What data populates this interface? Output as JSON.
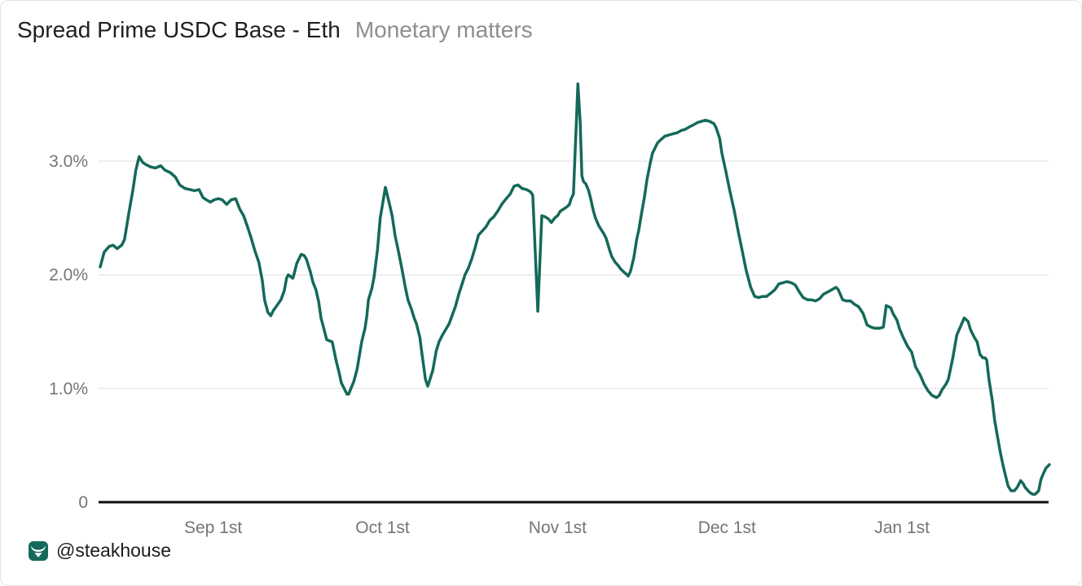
{
  "header": {
    "title": "Spread Prime USDC Base - Eth",
    "subtitle": "Monetary matters"
  },
  "footer": {
    "watermark": "@steakhouse",
    "logo_icon": "steakhouse-bull-icon"
  },
  "colors": {
    "line": "#14695A",
    "grid": "#e9e9e9",
    "axis": "#0d0d0d",
    "title": "#1f1f1f",
    "subtitle": "#8e8e8e",
    "tick_label": "#757575",
    "logo_bg": "#14695A",
    "logo_glyph": "#ffffff",
    "background": "#ffffff"
  },
  "chart_data": {
    "type": "line",
    "title": "Spread Prime USDC Base - Eth",
    "subtitle": "Monetary matters",
    "x_unit": "days (0 = chart start; Sep 1st = day 20, daily series ending ~4 weeks after Jan 1st)",
    "y_unit": "percent",
    "x_range": [
      0,
      168.1
    ],
    "y_range": [
      0,
      3.7
    ],
    "grid": "horizontal gridlines at 1.0%, 2.0%, 3.0%; black baseline at 0",
    "legend": "none",
    "x_ticks": [
      {
        "day": 20,
        "label": "Sep 1st"
      },
      {
        "day": 50,
        "label": "Oct 1st"
      },
      {
        "day": 81,
        "label": "Nov 1st"
      },
      {
        "day": 111,
        "label": "Dec 1st"
      },
      {
        "day": 142,
        "label": "Jan 1st"
      }
    ],
    "y_ticks": [
      {
        "value": 0,
        "label": "0"
      },
      {
        "value": 1,
        "label": "1.0%"
      },
      {
        "value": 2,
        "label": "2.0%"
      },
      {
        "value": 3,
        "label": "3.0%"
      }
    ],
    "series": [
      {
        "name": "Spread Prime USDC Base - Eth",
        "color": "#14695A",
        "points": [
          [
            0,
            2.07
          ],
          [
            0.7,
            2.2
          ],
          [
            1.6,
            2.25
          ],
          [
            2.3,
            2.26
          ],
          [
            3.0,
            2.23
          ],
          [
            3.8,
            2.26
          ],
          [
            4.3,
            2.31
          ],
          [
            5.1,
            2.55
          ],
          [
            5.8,
            2.75
          ],
          [
            6.3,
            2.92
          ],
          [
            6.9,
            3.04
          ],
          [
            7.5,
            2.99
          ],
          [
            8.1,
            2.97
          ],
          [
            8.9,
            2.95
          ],
          [
            9.8,
            2.94
          ],
          [
            10.7,
            2.96
          ],
          [
            11.5,
            2.92
          ],
          [
            12.4,
            2.9
          ],
          [
            13.3,
            2.86
          ],
          [
            14.1,
            2.79
          ],
          [
            15.0,
            2.76
          ],
          [
            15.9,
            2.75
          ],
          [
            16.7,
            2.74
          ],
          [
            17.5,
            2.75
          ],
          [
            18.2,
            2.68
          ],
          [
            18.8,
            2.66
          ],
          [
            19.5,
            2.64
          ],
          [
            20.2,
            2.66
          ],
          [
            20.9,
            2.67
          ],
          [
            21.6,
            2.66
          ],
          [
            22.4,
            2.62
          ],
          [
            23.2,
            2.66
          ],
          [
            24.0,
            2.67
          ],
          [
            24.7,
            2.58
          ],
          [
            25.4,
            2.52
          ],
          [
            26.1,
            2.42
          ],
          [
            26.7,
            2.33
          ],
          [
            27.4,
            2.21
          ],
          [
            28.1,
            2.11
          ],
          [
            28.7,
            1.95
          ],
          [
            29.1,
            1.78
          ],
          [
            29.7,
            1.67
          ],
          [
            30.2,
            1.64
          ],
          [
            30.7,
            1.69
          ],
          [
            31.3,
            1.73
          ],
          [
            32.0,
            1.78
          ],
          [
            32.6,
            1.86
          ],
          [
            33.0,
            1.97
          ],
          [
            33.3,
            2.0
          ],
          [
            33.6,
            1.99
          ],
          [
            34.1,
            1.97
          ],
          [
            34.3,
            2.0
          ],
          [
            34.8,
            2.1
          ],
          [
            35.4,
            2.16
          ],
          [
            35.6,
            2.18
          ],
          [
            36.1,
            2.17
          ],
          [
            36.5,
            2.14
          ],
          [
            37.2,
            2.03
          ],
          [
            37.7,
            1.93
          ],
          [
            38.2,
            1.87
          ],
          [
            38.7,
            1.76
          ],
          [
            39.1,
            1.62
          ],
          [
            39.7,
            1.51
          ],
          [
            40.1,
            1.43
          ],
          [
            40.6,
            1.42
          ],
          [
            41.1,
            1.41
          ],
          [
            41.3,
            1.36
          ],
          [
            41.8,
            1.24
          ],
          [
            42.3,
            1.14
          ],
          [
            42.7,
            1.05
          ],
          [
            43.3,
            0.99
          ],
          [
            43.7,
            0.95
          ],
          [
            44.0,
            0.95
          ],
          [
            44.4,
            1.0
          ],
          [
            44.9,
            1.06
          ],
          [
            45.5,
            1.17
          ],
          [
            45.9,
            1.29
          ],
          [
            46.3,
            1.41
          ],
          [
            46.9,
            1.53
          ],
          [
            47.2,
            1.63
          ],
          [
            47.5,
            1.78
          ],
          [
            48.1,
            1.88
          ],
          [
            48.5,
            1.98
          ],
          [
            49.1,
            2.22
          ],
          [
            49.6,
            2.5
          ],
          [
            50.2,
            2.68
          ],
          [
            50.5,
            2.77
          ],
          [
            51.1,
            2.65
          ],
          [
            51.7,
            2.52
          ],
          [
            52.2,
            2.35
          ],
          [
            52.8,
            2.21
          ],
          [
            53.4,
            2.06
          ],
          [
            54.0,
            1.9
          ],
          [
            54.5,
            1.78
          ],
          [
            55.1,
            1.7
          ],
          [
            55.6,
            1.62
          ],
          [
            56.0,
            1.57
          ],
          [
            56.6,
            1.45
          ],
          [
            57.0,
            1.3
          ],
          [
            57.6,
            1.08
          ],
          [
            58.0,
            1.02
          ],
          [
            58.4,
            1.08
          ],
          [
            58.9,
            1.16
          ],
          [
            59.5,
            1.33
          ],
          [
            60.0,
            1.41
          ],
          [
            60.6,
            1.47
          ],
          [
            61.2,
            1.52
          ],
          [
            61.8,
            1.57
          ],
          [
            62.3,
            1.64
          ],
          [
            62.9,
            1.72
          ],
          [
            63.5,
            1.83
          ],
          [
            64.1,
            1.92
          ],
          [
            64.6,
            2.0
          ],
          [
            65.2,
            2.06
          ],
          [
            65.8,
            2.14
          ],
          [
            66.4,
            2.24
          ],
          [
            67.0,
            2.35
          ],
          [
            68.3,
            2.42
          ],
          [
            69.0,
            2.48
          ],
          [
            69.7,
            2.51
          ],
          [
            70.4,
            2.56
          ],
          [
            71.1,
            2.62
          ],
          [
            71.9,
            2.67
          ],
          [
            72.6,
            2.71
          ],
          [
            73.3,
            2.78
          ],
          [
            74.0,
            2.79
          ],
          [
            74.7,
            2.76
          ],
          [
            75.5,
            2.75
          ],
          [
            76.2,
            2.73
          ],
          [
            76.6,
            2.7
          ],
          [
            77.5,
            1.68
          ],
          [
            78.2,
            2.52
          ],
          [
            78.8,
            2.51
          ],
          [
            79.4,
            2.49
          ],
          [
            79.9,
            2.46
          ],
          [
            80.5,
            2.5
          ],
          [
            81.0,
            2.52
          ],
          [
            81.5,
            2.56
          ],
          [
            82.1,
            2.58
          ],
          [
            82.7,
            2.6
          ],
          [
            83.1,
            2.62
          ],
          [
            83.4,
            2.67
          ],
          [
            83.8,
            2.71
          ],
          [
            84.6,
            3.68
          ],
          [
            85.0,
            3.34
          ],
          [
            85.3,
            2.87
          ],
          [
            85.6,
            2.82
          ],
          [
            86.0,
            2.8
          ],
          [
            86.5,
            2.74
          ],
          [
            86.9,
            2.66
          ],
          [
            87.3,
            2.57
          ],
          [
            87.7,
            2.5
          ],
          [
            88.3,
            2.43
          ],
          [
            88.7,
            2.4
          ],
          [
            89.2,
            2.36
          ],
          [
            89.6,
            2.32
          ],
          [
            90.2,
            2.22
          ],
          [
            90.6,
            2.16
          ],
          [
            91.2,
            2.11
          ],
          [
            91.6,
            2.09
          ],
          [
            92.2,
            2.05
          ],
          [
            92.6,
            2.03
          ],
          [
            93.1,
            2.01
          ],
          [
            93.5,
            1.99
          ],
          [
            93.9,
            2.03
          ],
          [
            94.5,
            2.15
          ],
          [
            95.0,
            2.31
          ],
          [
            95.4,
            2.4
          ],
          [
            95.8,
            2.52
          ],
          [
            96.4,
            2.69
          ],
          [
            96.8,
            2.83
          ],
          [
            97.4,
            2.98
          ],
          [
            97.8,
            3.07
          ],
          [
            98.3,
            3.12
          ],
          [
            98.7,
            3.16
          ],
          [
            99.3,
            3.19
          ],
          [
            100.0,
            3.22
          ],
          [
            100.7,
            3.23
          ],
          [
            101.4,
            3.24
          ],
          [
            102.2,
            3.25
          ],
          [
            102.9,
            3.27
          ],
          [
            103.6,
            3.28
          ],
          [
            104.3,
            3.3
          ],
          [
            105.1,
            3.32
          ],
          [
            105.8,
            3.34
          ],
          [
            106.5,
            3.35
          ],
          [
            107.2,
            3.36
          ],
          [
            107.9,
            3.35
          ],
          [
            108.7,
            3.33
          ],
          [
            109.1,
            3.29
          ],
          [
            109.7,
            3.2
          ],
          [
            110.1,
            3.07
          ],
          [
            110.8,
            2.91
          ],
          [
            111.5,
            2.74
          ],
          [
            112.3,
            2.56
          ],
          [
            113.0,
            2.38
          ],
          [
            113.7,
            2.21
          ],
          [
            114.4,
            2.04
          ],
          [
            115.2,
            1.89
          ],
          [
            115.9,
            1.81
          ],
          [
            116.6,
            1.8
          ],
          [
            117.3,
            1.81
          ],
          [
            118.0,
            1.81
          ],
          [
            118.8,
            1.84
          ],
          [
            119.5,
            1.87
          ],
          [
            120.2,
            1.92
          ],
          [
            120.9,
            1.93
          ],
          [
            121.6,
            1.94
          ],
          [
            122.4,
            1.93
          ],
          [
            123.1,
            1.91
          ],
          [
            123.8,
            1.85
          ],
          [
            124.5,
            1.8
          ],
          [
            125.3,
            1.78
          ],
          [
            126.0,
            1.78
          ],
          [
            126.7,
            1.77
          ],
          [
            127.4,
            1.79
          ],
          [
            128.1,
            1.83
          ],
          [
            128.9,
            1.85
          ],
          [
            129.6,
            1.87
          ],
          [
            130.3,
            1.89
          ],
          [
            130.7,
            1.87
          ],
          [
            131.5,
            1.78
          ],
          [
            132.2,
            1.77
          ],
          [
            132.9,
            1.77
          ],
          [
            133.6,
            1.74
          ],
          [
            134.3,
            1.72
          ],
          [
            135.1,
            1.66
          ],
          [
            135.8,
            1.56
          ],
          [
            136.5,
            1.54
          ],
          [
            137.2,
            1.53
          ],
          [
            138.0,
            1.53
          ],
          [
            138.7,
            1.54
          ],
          [
            139.2,
            1.73
          ],
          [
            140.0,
            1.71
          ],
          [
            140.4,
            1.66
          ],
          [
            141.1,
            1.6
          ],
          [
            141.6,
            1.52
          ],
          [
            142.3,
            1.44
          ],
          [
            143.0,
            1.37
          ],
          [
            143.7,
            1.32
          ],
          [
            144.4,
            1.19
          ],
          [
            145.2,
            1.12
          ],
          [
            145.9,
            1.04
          ],
          [
            146.6,
            0.98
          ],
          [
            147.3,
            0.94
          ],
          [
            148.1,
            0.92
          ],
          [
            148.6,
            0.94
          ],
          [
            149.1,
            0.99
          ],
          [
            149.8,
            1.04
          ],
          [
            150.2,
            1.08
          ],
          [
            151.0,
            1.27
          ],
          [
            151.7,
            1.47
          ],
          [
            152.4,
            1.55
          ],
          [
            153.0,
            1.62
          ],
          [
            153.7,
            1.59
          ],
          [
            154.1,
            1.52
          ],
          [
            154.8,
            1.45
          ],
          [
            155.3,
            1.41
          ],
          [
            155.8,
            1.3
          ],
          [
            156.3,
            1.27
          ],
          [
            156.7,
            1.27
          ],
          [
            157.0,
            1.25
          ],
          [
            157.4,
            1.08
          ],
          [
            158.0,
            0.89
          ],
          [
            158.4,
            0.72
          ],
          [
            158.9,
            0.58
          ],
          [
            159.4,
            0.44
          ],
          [
            159.9,
            0.32
          ],
          [
            160.3,
            0.24
          ],
          [
            160.8,
            0.14
          ],
          [
            161.3,
            0.1
          ],
          [
            161.9,
            0.1
          ],
          [
            162.4,
            0.13
          ],
          [
            163.0,
            0.19
          ],
          [
            163.5,
            0.16
          ],
          [
            163.8,
            0.13
          ],
          [
            164.5,
            0.09
          ],
          [
            165.1,
            0.07
          ],
          [
            165.6,
            0.07
          ],
          [
            166.2,
            0.1
          ],
          [
            166.6,
            0.2
          ],
          [
            167.1,
            0.26
          ],
          [
            167.5,
            0.3
          ],
          [
            168.1,
            0.33
          ]
        ]
      }
    ]
  }
}
